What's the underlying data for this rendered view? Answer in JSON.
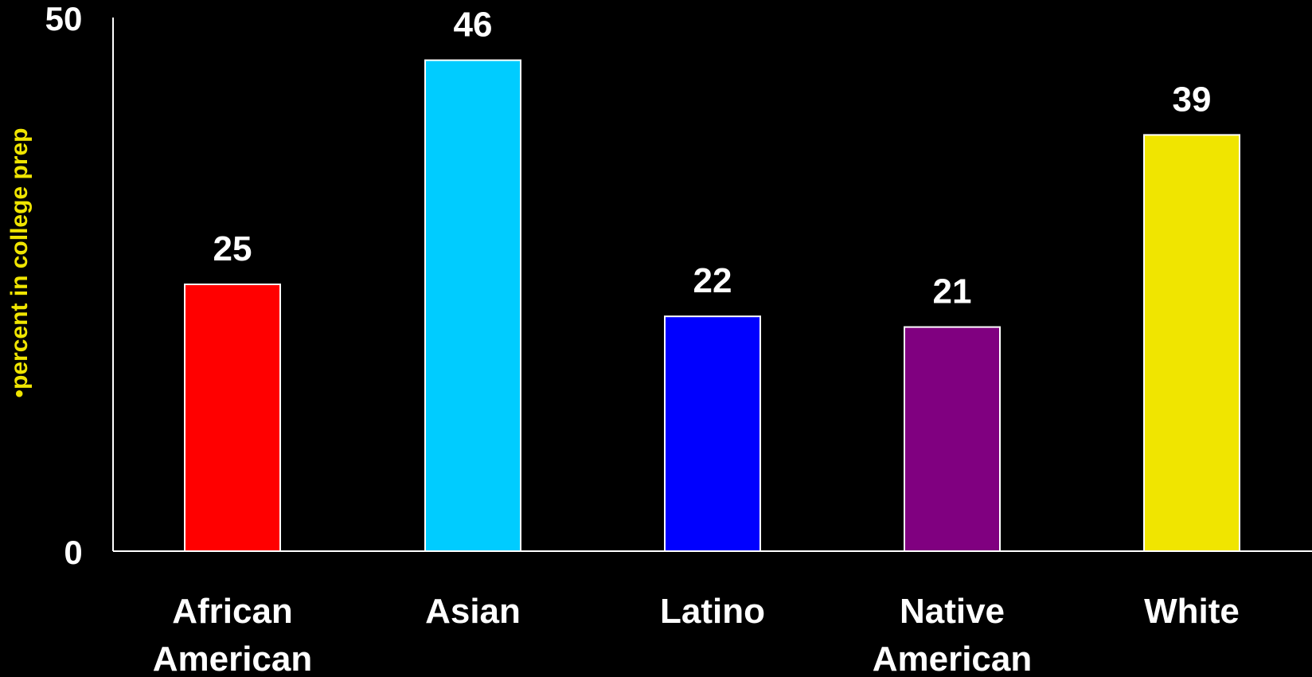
{
  "chart_data": {
    "type": "bar",
    "ylabel": "•percent in college prep",
    "ylim": [
      0,
      50
    ],
    "y_ticks": [
      "0",
      "50"
    ],
    "grid": false,
    "categories": [
      [
        "African",
        "American"
      ],
      [
        "Asian"
      ],
      [
        "Latino"
      ],
      [
        "Native",
        "American"
      ],
      [
        "White"
      ]
    ],
    "values": [
      25,
      46,
      22,
      21,
      39
    ],
    "value_labels": [
      "25",
      "46",
      "22",
      "21",
      "39"
    ],
    "colors": [
      "#ff0000",
      "#00ccff",
      "#0000ff",
      "#800080",
      "#f0e500"
    ],
    "background": "#000000",
    "axis_color": "#ffffff",
    "ylabel_color": "#f0e500"
  }
}
